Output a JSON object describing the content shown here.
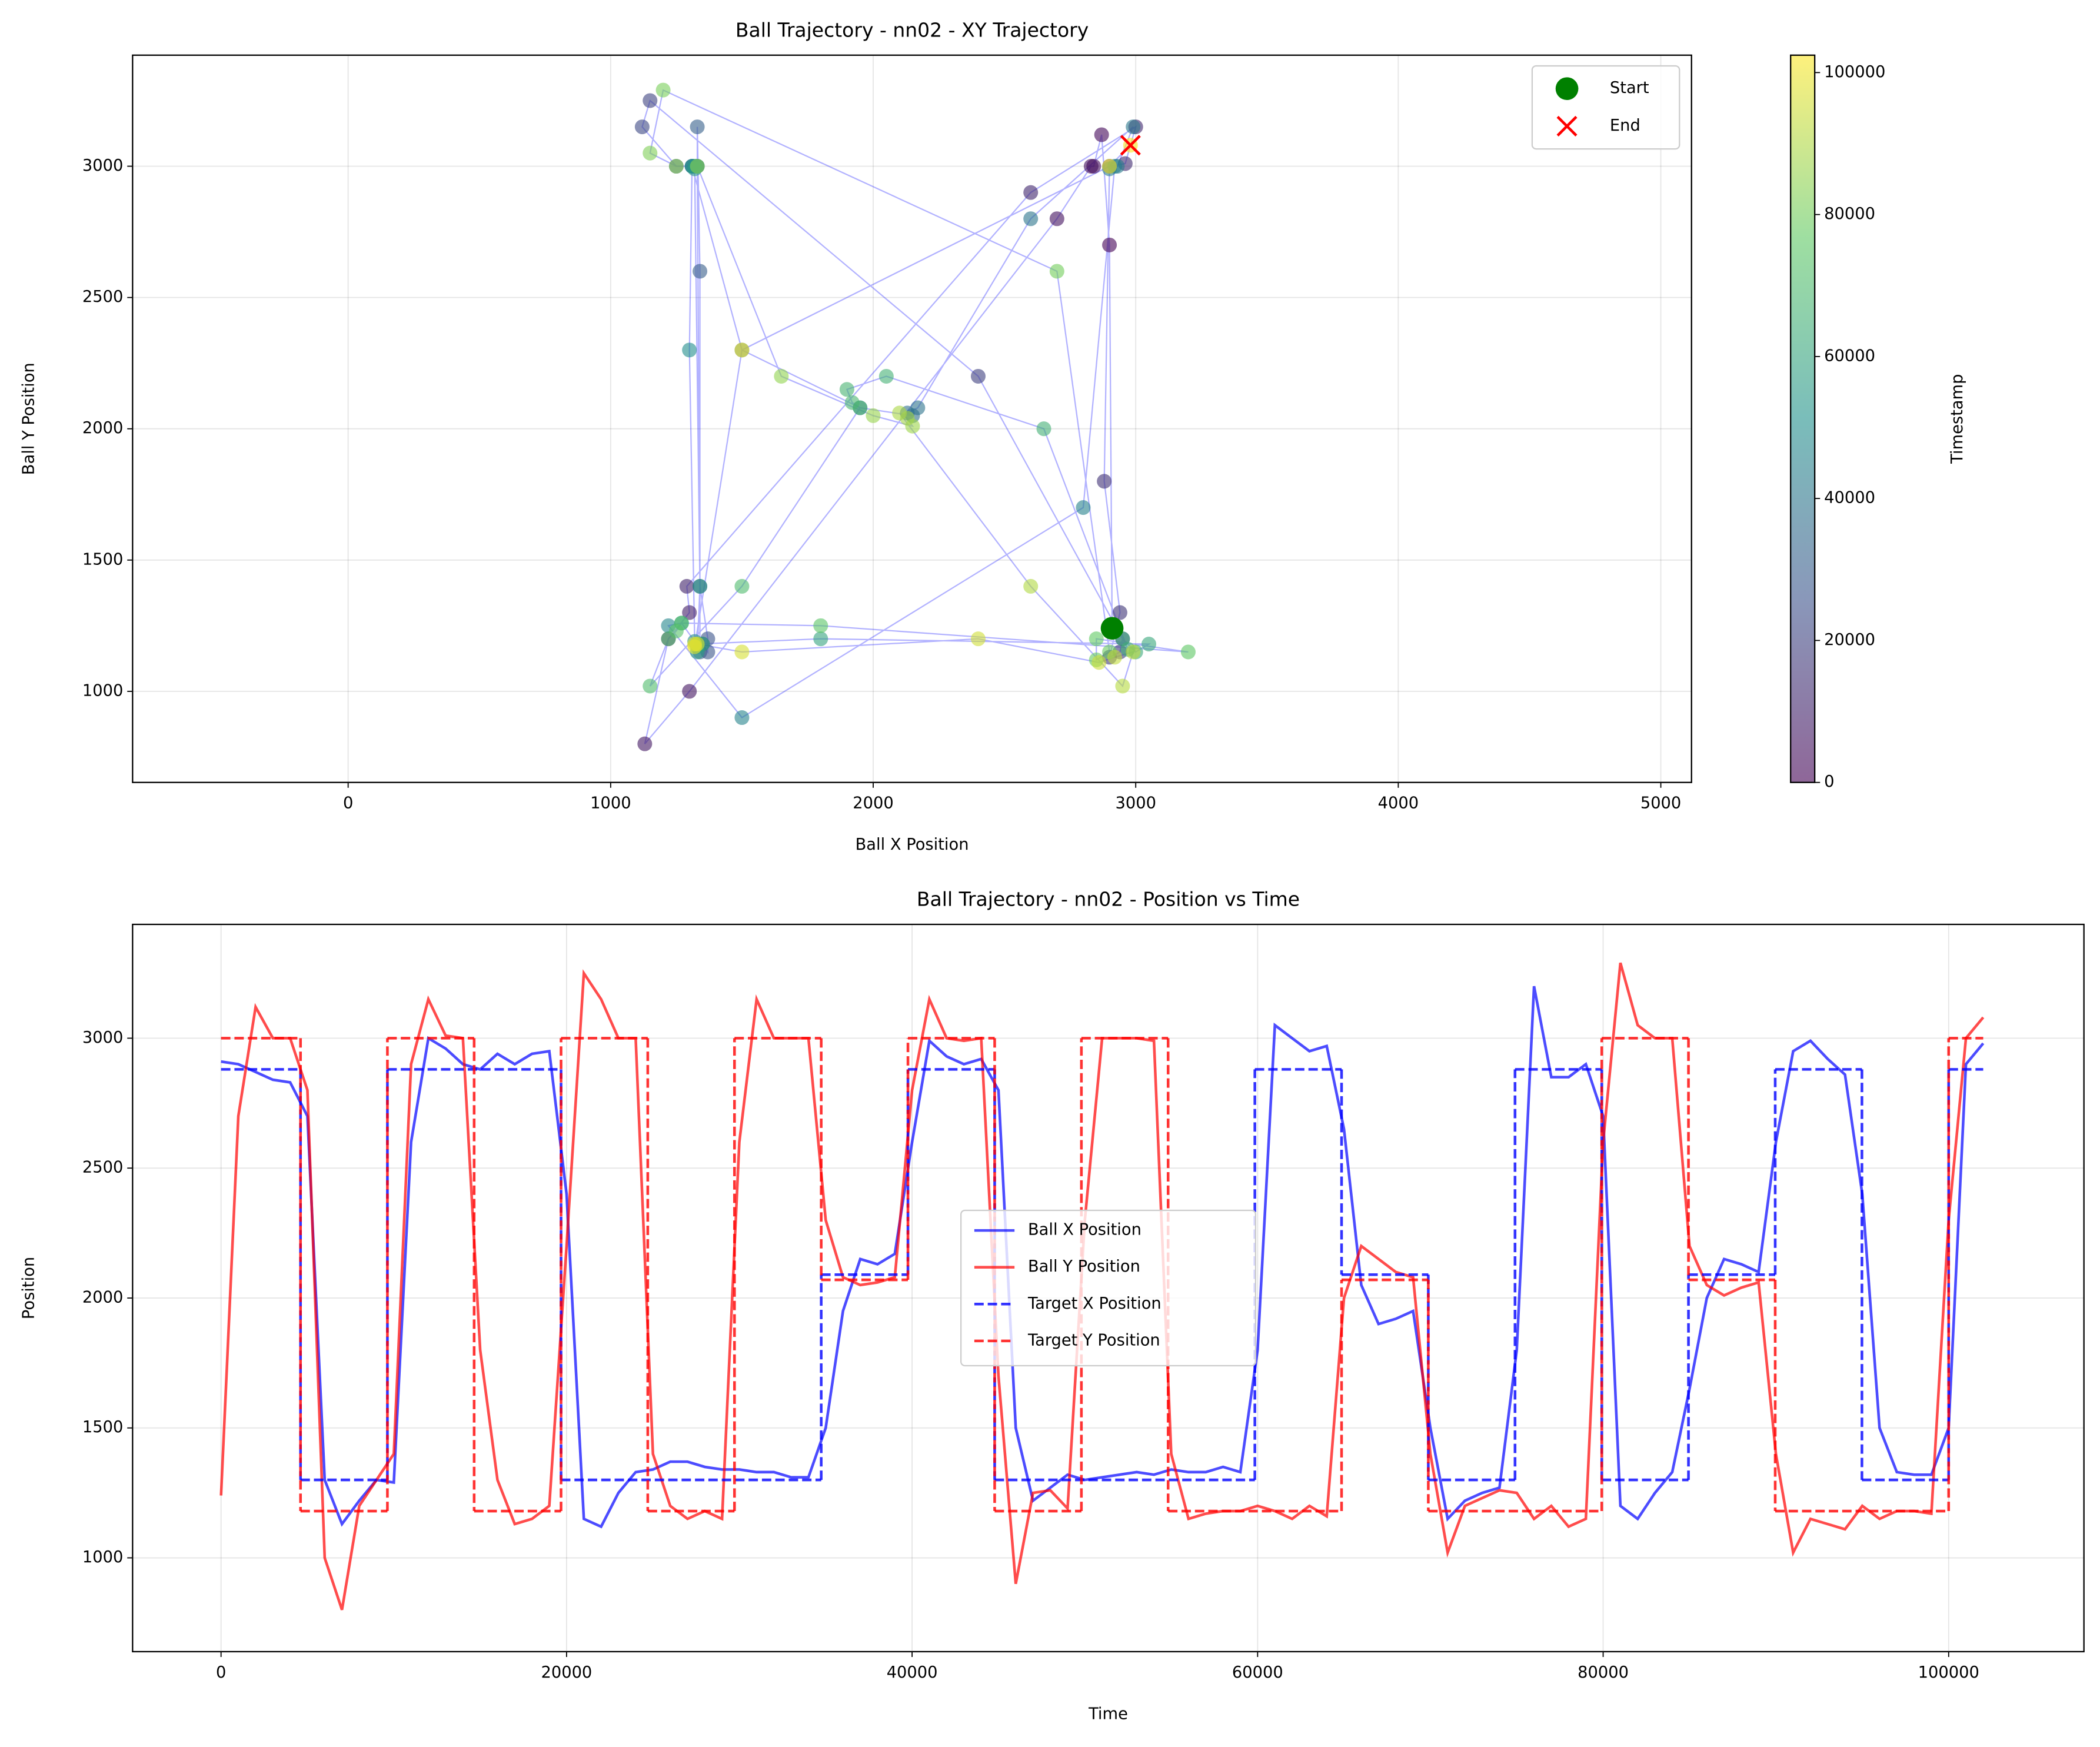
{
  "chart_data": [
    {
      "type": "scatter",
      "title": "Ball Trajectory - nn02 - XY Trajectory",
      "x_label": "Ball X Position",
      "y_label": "Ball Y Position",
      "xlim": [
        -821,
        5117
      ],
      "ylim": [
        653,
        3423
      ],
      "xticks": [
        0,
        1000,
        2000,
        3000,
        4000,
        5000
      ],
      "yticks": [
        1000,
        1500,
        2000,
        2500,
        3000
      ],
      "grid": true,
      "x": [
        2910,
        2900,
        2870,
        2840,
        2830,
        2700,
        1300,
        1130,
        1220,
        1300,
        1290,
        2600,
        3000,
        2960,
        2900,
        2880,
        2940,
        2900,
        2940,
        2950,
        2400,
        1150,
        1120,
        1250,
        1330,
        1340,
        1370,
        1370,
        1350,
        1340,
        1340,
        1330,
        1330,
        1310,
        1310,
        1500,
        1950,
        2150,
        2130,
        2170,
        2600,
        2990,
        2930,
        2900,
        2920,
        2800,
        1500,
        1220,
        1270,
        1320,
        1300,
        1310,
        1320,
        1330,
        1320,
        1340,
        1330,
        1330,
        1350,
        1330,
        1800,
        3050,
        3000,
        2950,
        2970,
        2650,
        2050,
        1900,
        1920,
        1950,
        1500,
        1150,
        1220,
        1250,
        1270,
        1800,
        3200,
        2850,
        2850,
        2900,
        2700,
        1200,
        1150,
        1250,
        1330,
        1650,
        2000,
        2150,
        2130,
        2100,
        2600,
        2950,
        2990,
        2920,
        2860,
        2400,
        1500,
        1330,
        1320,
        1320,
        1500,
        2900,
        2980
      ],
      "y": [
        1240,
        2700,
        3120,
        3000,
        3000,
        2800,
        1000,
        800,
        1200,
        1300,
        1400,
        2900,
        3150,
        3010,
        3000,
        1800,
        1300,
        1130,
        1150,
        1200,
        2200,
        3250,
        3150,
        3000,
        3000,
        1400,
        1200,
        1150,
        1180,
        1150,
        2600,
        3150,
        3000,
        3000,
        3000,
        2300,
        2080,
        2050,
        2060,
        2080,
        2800,
        3150,
        3000,
        2990,
        3000,
        1700,
        900,
        1250,
        1260,
        1190,
        2300,
        3000,
        3000,
        3000,
        2990,
        1400,
        1150,
        1170,
        1180,
        1180,
        1200,
        1180,
        1150,
        1200,
        1160,
        2000,
        2200,
        2150,
        2100,
        2080,
        1400,
        1020,
        1200,
        1230,
        1260,
        1250,
        1150,
        1200,
        1120,
        1150,
        2600,
        3290,
        3050,
        3000,
        3000,
        2200,
        2050,
        2010,
        2040,
        2060,
        1400,
        1020,
        1150,
        1130,
        1110,
        1200,
        1150,
        1180,
        1180,
        1170,
        2300,
        3000,
        3080
      ],
      "timestamps": [
        0,
        1000,
        2000,
        3000,
        4000,
        5000,
        6000,
        7000,
        8000,
        9000,
        10000,
        11000,
        12000,
        13000,
        14000,
        15000,
        16000,
        17000,
        18000,
        19000,
        20000,
        21000,
        22000,
        23000,
        24000,
        25000,
        26000,
        27000,
        28000,
        29000,
        30000,
        31000,
        32000,
        33000,
        34000,
        35000,
        36000,
        37000,
        38000,
        39000,
        40000,
        41000,
        42000,
        43000,
        44000,
        45000,
        46000,
        47000,
        48000,
        49000,
        50000,
        51000,
        52000,
        53000,
        54000,
        55000,
        56000,
        57000,
        58000,
        59000,
        60000,
        61000,
        62000,
        63000,
        64000,
        65000,
        66000,
        67000,
        68000,
        69000,
        70000,
        71000,
        72000,
        73000,
        74000,
        75000,
        76000,
        77000,
        78000,
        79000,
        80000,
        81000,
        82000,
        83000,
        84000,
        85000,
        86000,
        87000,
        88000,
        89000,
        90000,
        91000,
        92000,
        93000,
        94000,
        95000,
        96000,
        97000,
        98000,
        99000,
        100000,
        101000,
        102000
      ],
      "line_color": "blue",
      "colorbar": {
        "label": "Timestamp",
        "cmap": "viridis",
        "lim": [
          0,
          102450
        ],
        "ticks": [
          0,
          20000,
          40000,
          60000,
          80000,
          100000
        ]
      },
      "markers": [
        {
          "name": "Start",
          "x": 2910,
          "y": 1240,
          "color": "green",
          "marker": "o"
        },
        {
          "name": "End",
          "x": 2980,
          "y": 3080,
          "color": "red",
          "marker": "x"
        }
      ],
      "legend": "upper right"
    },
    {
      "type": "line",
      "title": "Ball Trajectory - nn02 - Position vs Time",
      "x_label": "Time",
      "y_label": "Position",
      "xlim": [
        -5120,
        107830
      ],
      "ylim": [
        639,
        3438
      ],
      "xticks": [
        0,
        20000,
        40000,
        60000,
        80000,
        100000
      ],
      "yticks": [
        1000,
        1500,
        2000,
        2500,
        3000
      ],
      "grid": true,
      "legend": "center",
      "x": [
        0,
        1000,
        2000,
        3000,
        4000,
        5000,
        6000,
        7000,
        8000,
        9000,
        10000,
        11000,
        12000,
        13000,
        14000,
        15000,
        16000,
        17000,
        18000,
        19000,
        20000,
        21000,
        22000,
        23000,
        24000,
        25000,
        26000,
        27000,
        28000,
        29000,
        30000,
        31000,
        32000,
        33000,
        34000,
        35000,
        36000,
        37000,
        38000,
        39000,
        40000,
        41000,
        42000,
        43000,
        44000,
        45000,
        46000,
        47000,
        48000,
        49000,
        50000,
        51000,
        52000,
        53000,
        54000,
        55000,
        56000,
        57000,
        58000,
        59000,
        60000,
        61000,
        62000,
        63000,
        64000,
        65000,
        66000,
        67000,
        68000,
        69000,
        70000,
        71000,
        72000,
        73000,
        74000,
        75000,
        76000,
        77000,
        78000,
        79000,
        80000,
        81000,
        82000,
        83000,
        84000,
        85000,
        86000,
        87000,
        88000,
        89000,
        90000,
        91000,
        92000,
        93000,
        94000,
        95000,
        96000,
        97000,
        98000,
        99000,
        100000,
        101000,
        102000
      ],
      "series": [
        {
          "name": "Ball X Position",
          "color": "blue",
          "alpha": 0.7,
          "linestyle": "solid",
          "values": [
            2910,
            2900,
            2870,
            2840,
            2830,
            2700,
            1300,
            1130,
            1220,
            1300,
            1290,
            2600,
            3000,
            2960,
            2900,
            2880,
            2940,
            2900,
            2940,
            2950,
            2400,
            1150,
            1120,
            1250,
            1330,
            1340,
            1370,
            1370,
            1350,
            1340,
            1340,
            1330,
            1330,
            1310,
            1310,
            1500,
            1950,
            2150,
            2130,
            2170,
            2600,
            2990,
            2930,
            2900,
            2920,
            2800,
            1500,
            1220,
            1270,
            1320,
            1300,
            1310,
            1320,
            1330,
            1320,
            1340,
            1330,
            1330,
            1350,
            1330,
            1800,
            3050,
            3000,
            2950,
            2970,
            2650,
            2050,
            1900,
            1920,
            1950,
            1500,
            1150,
            1220,
            1250,
            1270,
            1800,
            3200,
            2850,
            2850,
            2900,
            2700,
            1200,
            1150,
            1250,
            1330,
            1650,
            2000,
            2150,
            2130,
            2100,
            2600,
            2950,
            2990,
            2920,
            2860,
            2400,
            1500,
            1330,
            1320,
            1320,
            1500,
            2900,
            2980
          ]
        },
        {
          "name": "Ball Y Position",
          "color": "red",
          "alpha": 0.7,
          "linestyle": "solid",
          "values": [
            1240,
            2700,
            3120,
            3000,
            3000,
            2800,
            1000,
            800,
            1200,
            1300,
            1400,
            2900,
            3150,
            3010,
            3000,
            1800,
            1300,
            1130,
            1150,
            1200,
            2200,
            3250,
            3150,
            3000,
            3000,
            1400,
            1200,
            1150,
            1180,
            1150,
            2600,
            3150,
            3000,
            3000,
            3000,
            2300,
            2080,
            2050,
            2060,
            2080,
            2800,
            3150,
            3000,
            2990,
            3000,
            1700,
            900,
            1250,
            1260,
            1190,
            2300,
            3000,
            3000,
            3000,
            2990,
            1400,
            1150,
            1170,
            1180,
            1180,
            1200,
            1180,
            1150,
            1200,
            1160,
            2000,
            2200,
            2150,
            2100,
            2080,
            1400,
            1020,
            1200,
            1230,
            1260,
            1250,
            1150,
            1200,
            1120,
            1150,
            2600,
            3290,
            3050,
            3000,
            3000,
            2200,
            2050,
            2010,
            2040,
            2060,
            1400,
            1020,
            1150,
            1130,
            1110,
            1200,
            1150,
            1180,
            1180,
            1170,
            2300,
            3000,
            3080
          ]
        },
        {
          "name": "Target X Position",
          "color": "blue",
          "alpha": 0.8,
          "linestyle": "dashed",
          "drawstyle": "steps-post",
          "x": [
            0,
            4600,
            9630,
            19680,
            34740,
            39760,
            44780,
            59840,
            64860,
            69880,
            74900,
            79920,
            84940,
            89960,
            94980,
            100000
          ],
          "values": [
            2880,
            1300,
            2880,
            1300,
            2090,
            2880,
            1300,
            2880,
            2090,
            1300,
            2880,
            1300,
            2090,
            2880,
            1300,
            2880
          ]
        },
        {
          "name": "Target Y Position",
          "color": "red",
          "alpha": 0.8,
          "linestyle": "dashed",
          "drawstyle": "steps-post",
          "x": [
            0,
            4600,
            9630,
            14650,
            19680,
            24700,
            29720,
            34740,
            39760,
            44780,
            49800,
            54820,
            64860,
            69880,
            79920,
            84940,
            89960,
            100000
          ],
          "values": [
            3000,
            1180,
            3000,
            1180,
            3000,
            1180,
            3000,
            2070,
            3000,
            1180,
            3000,
            1180,
            2070,
            1180,
            3000,
            2070,
            1180,
            3000
          ]
        }
      ]
    }
  ]
}
